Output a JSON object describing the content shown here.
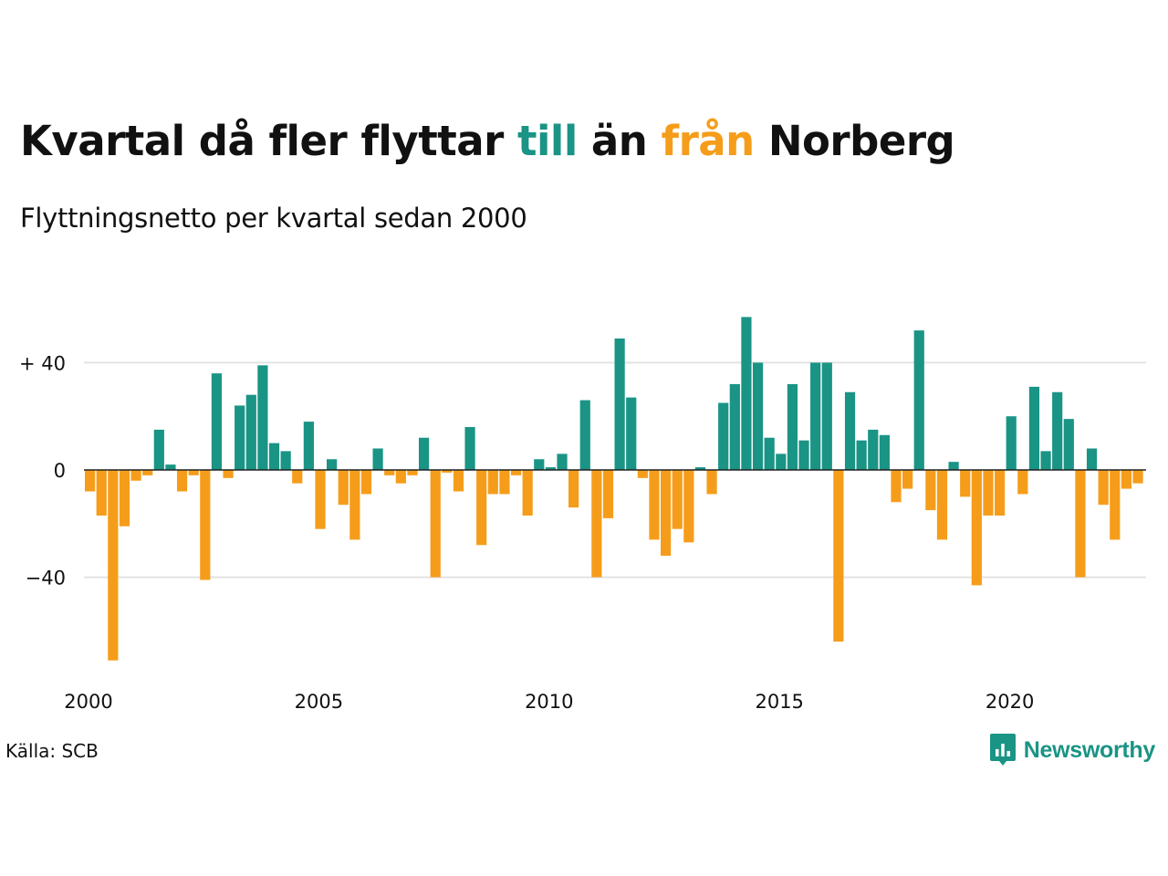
{
  "title": {
    "part1": "Kvartal då fler flyttar ",
    "till": "till",
    "part2": " än ",
    "fran": "från",
    "part3": " Norberg"
  },
  "subtitle": "Flyttningsnetto per kvartal sedan 2000",
  "source": "Källa: SCB",
  "brand": "Newsworthy",
  "colors": {
    "positive": "#1a9485",
    "negative": "#f59d1a",
    "grid": "#e3e3e3",
    "zero_line": "#222222"
  },
  "chart_data": {
    "type": "bar",
    "x_start": "2000 Q1",
    "x_ticks": [
      {
        "label": "2000",
        "year": 2000
      },
      {
        "label": "2005",
        "year": 2005
      },
      {
        "label": "2010",
        "year": 2010
      },
      {
        "label": "2015",
        "year": 2015
      },
      {
        "label": "2020",
        "year": 2020
      }
    ],
    "y_ticks": [
      {
        "label": "+ 40",
        "value": 40
      },
      {
        "label": "0",
        "value": 0
      },
      {
        "label": "−40",
        "value": -40
      }
    ],
    "ylim": [
      -75,
      60
    ],
    "grid": true,
    "values": [
      -8,
      -17,
      -71,
      -21,
      -4,
      -2,
      15,
      2,
      -8,
      -2,
      -41,
      36,
      -3,
      24,
      28,
      39,
      10,
      7,
      -5,
      18,
      -22,
      4,
      -13,
      -26,
      -9,
      8,
      -2,
      -5,
      -2,
      12,
      -40,
      -1,
      -8,
      16,
      -28,
      -9,
      -9,
      -2,
      -17,
      4,
      1,
      6,
      -14,
      26,
      -40,
      -18,
      49,
      27,
      -3,
      -26,
      -32,
      -22,
      -27,
      1,
      -9,
      25,
      32,
      57,
      40,
      12,
      6,
      32,
      11,
      40,
      40,
      -64,
      29,
      11,
      15,
      13,
      -12,
      -7,
      52,
      -15,
      -26,
      3,
      -10,
      -43,
      -17,
      -17,
      20,
      -9,
      31,
      7,
      29,
      19,
      -40,
      8,
      -13,
      -26,
      -7,
      -5
    ]
  }
}
